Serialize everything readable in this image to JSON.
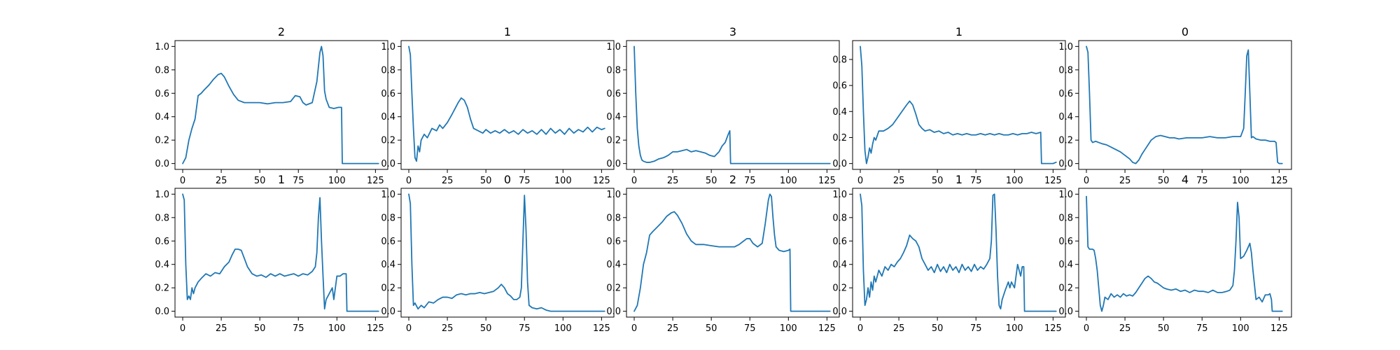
{
  "figure": {
    "line_color": "#1f77b4"
  },
  "chart_data": [
    {
      "type": "line",
      "title": "2",
      "xlim": [
        -5,
        133
      ],
      "ylim": [
        -0.05,
        1.05
      ],
      "xticks": [
        0,
        25,
        50,
        75,
        100,
        125
      ],
      "yticks": [
        0.0,
        0.2,
        0.4,
        0.6,
        0.8,
        1.0
      ],
      "x": [
        0,
        2,
        4,
        6,
        8,
        10,
        12,
        14,
        17,
        20,
        23,
        25,
        27,
        30,
        33,
        36,
        40,
        45,
        50,
        55,
        60,
        65,
        70,
        73,
        76,
        78,
        80,
        84,
        87,
        89,
        90,
        91,
        92,
        93,
        95,
        98,
        101,
        103,
        103.5,
        110,
        120,
        127
      ],
      "y": [
        0.0,
        0.05,
        0.2,
        0.3,
        0.38,
        0.58,
        0.6,
        0.63,
        0.67,
        0.72,
        0.76,
        0.77,
        0.74,
        0.66,
        0.59,
        0.54,
        0.52,
        0.52,
        0.52,
        0.51,
        0.52,
        0.52,
        0.53,
        0.58,
        0.57,
        0.52,
        0.5,
        0.52,
        0.7,
        0.95,
        1.0,
        0.92,
        0.62,
        0.55,
        0.48,
        0.47,
        0.48,
        0.48,
        0.0,
        0.0,
        0.0,
        0.0
      ]
    },
    {
      "type": "line",
      "title": "1",
      "xlim": [
        -5,
        133
      ],
      "ylim": [
        -0.05,
        1.05
      ],
      "xticks": [
        0,
        25,
        50,
        75,
        100,
        125
      ],
      "yticks": [
        0.0,
        0.2,
        0.4,
        0.6,
        0.8,
        1.0
      ],
      "x": [
        0,
        1,
        2,
        3,
        4,
        5,
        6,
        7,
        8,
        10,
        12,
        15,
        18,
        20,
        22,
        25,
        28,
        30,
        32,
        34,
        36,
        38,
        40,
        42,
        45,
        48,
        50,
        53,
        56,
        59,
        62,
        65,
        68,
        71,
        74,
        77,
        80,
        83,
        86,
        89,
        92,
        95,
        98,
        101,
        104,
        107,
        110,
        113,
        116,
        119,
        122,
        125,
        127
      ],
      "y": [
        1.0,
        0.93,
        0.6,
        0.3,
        0.05,
        0.02,
        0.15,
        0.1,
        0.2,
        0.25,
        0.22,
        0.3,
        0.28,
        0.33,
        0.3,
        0.35,
        0.42,
        0.47,
        0.52,
        0.56,
        0.54,
        0.48,
        0.38,
        0.3,
        0.28,
        0.26,
        0.29,
        0.26,
        0.28,
        0.26,
        0.29,
        0.26,
        0.28,
        0.25,
        0.29,
        0.26,
        0.28,
        0.25,
        0.29,
        0.25,
        0.3,
        0.26,
        0.29,
        0.25,
        0.3,
        0.26,
        0.29,
        0.27,
        0.31,
        0.27,
        0.31,
        0.29,
        0.3
      ]
    },
    {
      "type": "line",
      "title": "3",
      "xlim": [
        -5,
        133
      ],
      "ylim": [
        -0.05,
        1.05
      ],
      "xticks": [
        0,
        25,
        50,
        75,
        100,
        125
      ],
      "yticks": [
        0.0,
        0.2,
        0.4,
        0.6,
        0.8,
        1.0
      ],
      "x": [
        0,
        1,
        2,
        3,
        4,
        5,
        6,
        8,
        10,
        13,
        16,
        19,
        22,
        25,
        28,
        31,
        34,
        37,
        40,
        43,
        46,
        49,
        52,
        55,
        57,
        59,
        61,
        62,
        62.5,
        70,
        80,
        90,
        100,
        110,
        120,
        127
      ],
      "y": [
        1.0,
        0.6,
        0.3,
        0.15,
        0.07,
        0.03,
        0.02,
        0.01,
        0.01,
        0.02,
        0.04,
        0.05,
        0.07,
        0.1,
        0.1,
        0.11,
        0.12,
        0.1,
        0.11,
        0.1,
        0.09,
        0.07,
        0.06,
        0.1,
        0.15,
        0.18,
        0.25,
        0.28,
        0.0,
        0.0,
        0.0,
        0.0,
        0.0,
        0.0,
        0.0,
        0.0
      ]
    },
    {
      "type": "line",
      "title": "1",
      "xlim": [
        -5,
        133
      ],
      "ylim": [
        -0.045,
        0.945
      ],
      "xticks": [
        0,
        25,
        50,
        75,
        100,
        125
      ],
      "yticks": [
        0.0,
        0.2,
        0.4,
        0.6,
        0.8
      ],
      "x": [
        0,
        1,
        2,
        3,
        4,
        5,
        6,
        7,
        8,
        9,
        10,
        12,
        15,
        18,
        21,
        24,
        27,
        30,
        32,
        34,
        36,
        38,
        40,
        42,
        45,
        48,
        51,
        54,
        57,
        60,
        63,
        66,
        69,
        72,
        75,
        78,
        81,
        84,
        87,
        90,
        93,
        96,
        99,
        102,
        105,
        108,
        111,
        114,
        117,
        117.5,
        120,
        125,
        127
      ],
      "y": [
        0.9,
        0.75,
        0.4,
        0.1,
        0.0,
        0.05,
        0.12,
        0.08,
        0.15,
        0.2,
        0.18,
        0.25,
        0.25,
        0.27,
        0.3,
        0.35,
        0.4,
        0.45,
        0.48,
        0.45,
        0.38,
        0.3,
        0.27,
        0.25,
        0.26,
        0.24,
        0.25,
        0.23,
        0.24,
        0.22,
        0.23,
        0.22,
        0.23,
        0.22,
        0.22,
        0.23,
        0.22,
        0.23,
        0.22,
        0.23,
        0.22,
        0.22,
        0.23,
        0.22,
        0.23,
        0.23,
        0.24,
        0.23,
        0.24,
        0.0,
        0.0,
        0.0,
        0.01
      ]
    },
    {
      "type": "line",
      "title": "0",
      "xlim": [
        -5,
        133
      ],
      "ylim": [
        -0.05,
        1.05
      ],
      "xticks": [
        0,
        25,
        50,
        75,
        100,
        125
      ],
      "yticks": [
        0.0,
        0.2,
        0.4,
        0.6,
        0.8,
        1.0
      ],
      "x": [
        0,
        1,
        2,
        3,
        4,
        6,
        8,
        10,
        13,
        16,
        19,
        22,
        25,
        28,
        30,
        32,
        34,
        36,
        38,
        40,
        42,
        45,
        48,
        51,
        54,
        57,
        60,
        65,
        70,
        75,
        80,
        85,
        90,
        95,
        100,
        102,
        103,
        104,
        105,
        106,
        107,
        108,
        110,
        113,
        116,
        119,
        122,
        123,
        124,
        125,
        127
      ],
      "y": [
        1.0,
        0.95,
        0.6,
        0.2,
        0.18,
        0.19,
        0.18,
        0.17,
        0.16,
        0.14,
        0.12,
        0.1,
        0.07,
        0.04,
        0.01,
        0.0,
        0.03,
        0.08,
        0.12,
        0.16,
        0.2,
        0.23,
        0.24,
        0.23,
        0.22,
        0.22,
        0.21,
        0.22,
        0.22,
        0.22,
        0.23,
        0.22,
        0.22,
        0.23,
        0.23,
        0.3,
        0.6,
        0.92,
        0.97,
        0.6,
        0.22,
        0.23,
        0.21,
        0.2,
        0.2,
        0.19,
        0.19,
        0.18,
        0.01,
        0.0,
        0.0
      ]
    },
    {
      "type": "line",
      "title": "1",
      "xlim": [
        -5,
        133
      ],
      "ylim": [
        -0.05,
        1.05
      ],
      "xticks": [
        0,
        25,
        50,
        75,
        100,
        125
      ],
      "yticks": [
        0.0,
        0.2,
        0.4,
        0.6,
        0.8,
        1.0
      ],
      "x": [
        0,
        1,
        2,
        3,
        4,
        5,
        6,
        7,
        8,
        10,
        12,
        15,
        18,
        21,
        24,
        27,
        30,
        32,
        34,
        36,
        38,
        40,
        42,
        45,
        48,
        51,
        54,
        57,
        60,
        63,
        66,
        69,
        72,
        75,
        78,
        81,
        84,
        86,
        87,
        88,
        89,
        90,
        91,
        92,
        93,
        95,
        97,
        98,
        100,
        102,
        104,
        106,
        106.5,
        110,
        120,
        127
      ],
      "y": [
        1.0,
        0.95,
        0.4,
        0.1,
        0.13,
        0.1,
        0.2,
        0.15,
        0.2,
        0.25,
        0.28,
        0.32,
        0.3,
        0.33,
        0.32,
        0.38,
        0.42,
        0.48,
        0.53,
        0.53,
        0.52,
        0.45,
        0.38,
        0.32,
        0.3,
        0.31,
        0.29,
        0.32,
        0.3,
        0.32,
        0.3,
        0.31,
        0.32,
        0.3,
        0.32,
        0.31,
        0.34,
        0.38,
        0.5,
        0.8,
        0.97,
        0.6,
        0.3,
        0.02,
        0.1,
        0.15,
        0.2,
        0.1,
        0.3,
        0.3,
        0.32,
        0.32,
        0.0,
        0.0,
        0.0,
        0.0
      ]
    },
    {
      "type": "line",
      "title": "0",
      "xlim": [
        -5,
        133
      ],
      "ylim": [
        -0.05,
        1.05
      ],
      "xticks": [
        0,
        25,
        50,
        75,
        100,
        125
      ],
      "yticks": [
        0.0,
        0.2,
        0.4,
        0.6,
        0.8,
        1.0
      ],
      "x": [
        0,
        1,
        2,
        3,
        4,
        6,
        8,
        10,
        13,
        16,
        19,
        22,
        25,
        28,
        31,
        34,
        37,
        40,
        43,
        46,
        49,
        52,
        55,
        58,
        60,
        62,
        64,
        66,
        68,
        70,
        72,
        73,
        74,
        75,
        76,
        77,
        78,
        80,
        83,
        86,
        89,
        92,
        95,
        100,
        110,
        120,
        127
      ],
      "y": [
        1.0,
        0.92,
        0.4,
        0.05,
        0.07,
        0.02,
        0.05,
        0.03,
        0.08,
        0.07,
        0.1,
        0.12,
        0.12,
        0.11,
        0.14,
        0.15,
        0.14,
        0.15,
        0.15,
        0.16,
        0.15,
        0.16,
        0.17,
        0.2,
        0.23,
        0.2,
        0.15,
        0.13,
        0.1,
        0.1,
        0.12,
        0.2,
        0.6,
        0.99,
        0.7,
        0.25,
        0.05,
        0.03,
        0.02,
        0.03,
        0.01,
        0.0,
        0.0,
        0.0,
        0.0,
        0.0,
        0.0
      ]
    },
    {
      "type": "line",
      "title": "2",
      "xlim": [
        -5,
        133
      ],
      "ylim": [
        -0.05,
        1.05
      ],
      "xticks": [
        0,
        25,
        50,
        75,
        100,
        125
      ],
      "yticks": [
        0.0,
        0.2,
        0.4,
        0.6,
        0.8,
        1.0
      ],
      "x": [
        0,
        2,
        4,
        6,
        8,
        10,
        12,
        15,
        18,
        21,
        24,
        26,
        28,
        31,
        34,
        37,
        40,
        45,
        50,
        55,
        60,
        65,
        68,
        71,
        73,
        75,
        77,
        80,
        83,
        85,
        87,
        88,
        89,
        90,
        91,
        92,
        94,
        97,
        100,
        101,
        101.5,
        110,
        120,
        127
      ],
      "y": [
        0.0,
        0.05,
        0.2,
        0.4,
        0.5,
        0.65,
        0.68,
        0.72,
        0.76,
        0.81,
        0.84,
        0.85,
        0.82,
        0.75,
        0.66,
        0.6,
        0.57,
        0.57,
        0.56,
        0.55,
        0.55,
        0.55,
        0.57,
        0.6,
        0.62,
        0.62,
        0.58,
        0.55,
        0.58,
        0.75,
        0.95,
        1.0,
        0.98,
        0.8,
        0.65,
        0.55,
        0.52,
        0.51,
        0.52,
        0.53,
        0.0,
        0.0,
        0.0,
        0.0
      ]
    },
    {
      "type": "line",
      "title": "1",
      "xlim": [
        -5,
        133
      ],
      "ylim": [
        -0.05,
        1.05
      ],
      "xticks": [
        0,
        25,
        50,
        75,
        100,
        125
      ],
      "yticks": [
        0.0,
        0.2,
        0.4,
        0.6,
        0.8,
        1.0
      ],
      "x": [
        0,
        1,
        2,
        3,
        4,
        5,
        6,
        7,
        8,
        9,
        10,
        12,
        14,
        16,
        18,
        20,
        22,
        24,
        26,
        28,
        30,
        32,
        34,
        36,
        38,
        40,
        42,
        44,
        46,
        48,
        50,
        52,
        54,
        56,
        58,
        60,
        62,
        64,
        66,
        68,
        70,
        72,
        74,
        76,
        78,
        80,
        82,
        84,
        85,
        86,
        87,
        88,
        89,
        90,
        91,
        92,
        94,
        96,
        97,
        98,
        100,
        102,
        103,
        104,
        105,
        106,
        106.5,
        110,
        120,
        127
      ],
      "y": [
        1.0,
        0.9,
        0.35,
        0.05,
        0.1,
        0.2,
        0.12,
        0.25,
        0.18,
        0.3,
        0.25,
        0.35,
        0.3,
        0.38,
        0.35,
        0.4,
        0.38,
        0.42,
        0.45,
        0.5,
        0.56,
        0.65,
        0.62,
        0.6,
        0.55,
        0.45,
        0.4,
        0.35,
        0.38,
        0.33,
        0.4,
        0.34,
        0.38,
        0.33,
        0.4,
        0.35,
        0.38,
        0.33,
        0.4,
        0.35,
        0.38,
        0.34,
        0.4,
        0.35,
        0.38,
        0.36,
        0.4,
        0.45,
        0.6,
        0.99,
        1.0,
        0.7,
        0.3,
        0.05,
        0.02,
        0.1,
        0.18,
        0.25,
        0.2,
        0.25,
        0.2,
        0.4,
        0.35,
        0.3,
        0.38,
        0.38,
        0.0,
        0.0,
        0.0,
        0.0
      ]
    },
    {
      "type": "line",
      "title": "4",
      "xlim": [
        -5,
        133
      ],
      "ylim": [
        -0.05,
        1.05
      ],
      "xticks": [
        0,
        25,
        50,
        75,
        100,
        125
      ],
      "yticks": [
        0.0,
        0.2,
        0.4,
        0.6,
        0.8,
        1.0
      ],
      "x": [
        0,
        1,
        2,
        3,
        4,
        5,
        6,
        7,
        8,
        9,
        10,
        11,
        12,
        14,
        16,
        18,
        20,
        22,
        24,
        26,
        28,
        30,
        32,
        34,
        36,
        38,
        40,
        42,
        44,
        46,
        48,
        50,
        52,
        55,
        58,
        61,
        64,
        67,
        70,
        73,
        76,
        79,
        82,
        85,
        88,
        91,
        93,
        95,
        96,
        97,
        98,
        99,
        100,
        102,
        104,
        105,
        106,
        107,
        108,
        110,
        112,
        114,
        116,
        118,
        119,
        120,
        120.5,
        122,
        125,
        127
      ],
      "y": [
        0.98,
        0.55,
        0.53,
        0.53,
        0.53,
        0.52,
        0.45,
        0.35,
        0.2,
        0.05,
        0.0,
        0.05,
        0.12,
        0.1,
        0.15,
        0.12,
        0.14,
        0.12,
        0.15,
        0.13,
        0.14,
        0.13,
        0.16,
        0.2,
        0.24,
        0.28,
        0.3,
        0.28,
        0.25,
        0.24,
        0.22,
        0.2,
        0.19,
        0.18,
        0.19,
        0.17,
        0.18,
        0.16,
        0.18,
        0.17,
        0.17,
        0.16,
        0.18,
        0.16,
        0.16,
        0.17,
        0.18,
        0.22,
        0.35,
        0.6,
        0.93,
        0.8,
        0.45,
        0.47,
        0.52,
        0.55,
        0.58,
        0.5,
        0.35,
        0.1,
        0.12,
        0.08,
        0.14,
        0.14,
        0.15,
        0.1,
        0.0,
        0.0,
        0.0,
        0.0
      ]
    }
  ]
}
